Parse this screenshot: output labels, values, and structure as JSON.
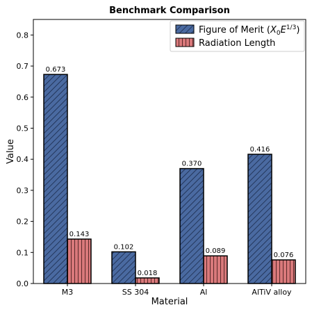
{
  "chart_data": {
    "type": "bar",
    "title": "Benchmark Comparison",
    "xlabel": "Material",
    "ylabel": "Value",
    "categories": [
      "M3",
      "SS 304",
      "Al",
      "AlTiV alloy"
    ],
    "series": [
      {
        "name_main": "Figure of Merit (",
        "name_x": "X",
        "name_sub": "0",
        "name_e": "E",
        "name_sup": "1/3",
        "name_close": ")",
        "values": [
          0.673,
          0.102,
          0.37,
          0.416
        ],
        "labels": [
          "0.673",
          "0.102",
          "0.370",
          "0.416"
        ],
        "color": "#4a6aa1",
        "hatch": "diagonal"
      },
      {
        "name": "Radiation Length",
        "values": [
          0.143,
          0.018,
          0.089,
          0.076
        ],
        "labels": [
          "0.143",
          "0.018",
          "0.089",
          "0.076"
        ],
        "color": "#d9797b",
        "hatch": "vertical"
      }
    ],
    "ylim": [
      0,
      0.85
    ],
    "yticks": [
      "0.0",
      "0.1",
      "0.2",
      "0.3",
      "0.4",
      "0.5",
      "0.6",
      "0.7",
      "0.8"
    ],
    "legend_position": "top-right",
    "grid": false
  }
}
